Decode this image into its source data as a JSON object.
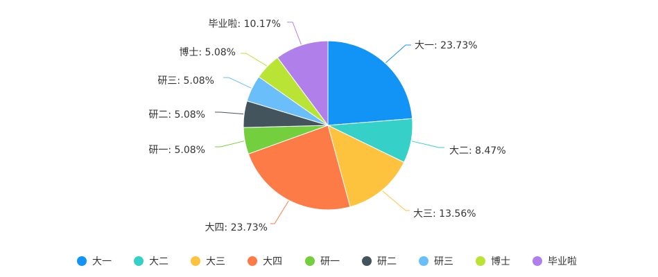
{
  "chart_data": {
    "type": "pie",
    "title": "",
    "categories": [
      "大一",
      "大二",
      "大三",
      "大四",
      "研一",
      "研二",
      "研三",
      "博士",
      "毕业啦"
    ],
    "values": [
      23.73,
      8.47,
      13.56,
      23.73,
      5.08,
      5.08,
      5.08,
      5.08,
      10.17
    ],
    "labels": [
      "大一: 23.73%",
      "大二: 8.47%",
      "大三: 13.56%",
      "大四: 23.73%",
      "研一: 5.08%",
      "研二: 5.08%",
      "研三: 5.08%",
      "博士: 5.08%",
      "毕业啦: 10.17%"
    ],
    "colors": [
      "#1194f6",
      "#35d0c8",
      "#fec33e",
      "#fc7b46",
      "#74cf3e",
      "#44545d",
      "#6abffa",
      "#b9e335",
      "#b07fe9"
    ],
    "start_angle": "12 o'clock, clockwise",
    "legend": {
      "position": "bottom-center",
      "marker": "circle"
    }
  }
}
